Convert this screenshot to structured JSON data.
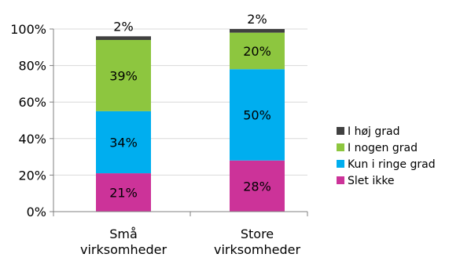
{
  "chart_data": {
    "type": "bar",
    "stacked": true,
    "categories": [
      [
        "Små",
        "virksomheder"
      ],
      [
        "Store",
        "virksomheder"
      ]
    ],
    "series": [
      {
        "name": "Slet ikke",
        "color": "#cc3399",
        "values": [
          21,
          28
        ],
        "labels": [
          "21%",
          "28%"
        ]
      },
      {
        "name": "Kun i ringe grad",
        "color": "#00aeef",
        "values": [
          34,
          50
        ],
        "labels": [
          "34%",
          "50%"
        ]
      },
      {
        "name": "I nogen grad",
        "color": "#8dc63f",
        "values": [
          39,
          20
        ],
        "labels": [
          "39%",
          "20%"
        ]
      },
      {
        "name": "I høj grad",
        "color": "#404040",
        "values": [
          2,
          2
        ],
        "labels": [
          "2%",
          "2%"
        ]
      }
    ],
    "ylim": [
      0,
      100
    ],
    "yticks": [
      "0%",
      "20%",
      "40%",
      "60%",
      "80%",
      "100%"
    ],
    "legend_position": "right",
    "grid": true
  }
}
